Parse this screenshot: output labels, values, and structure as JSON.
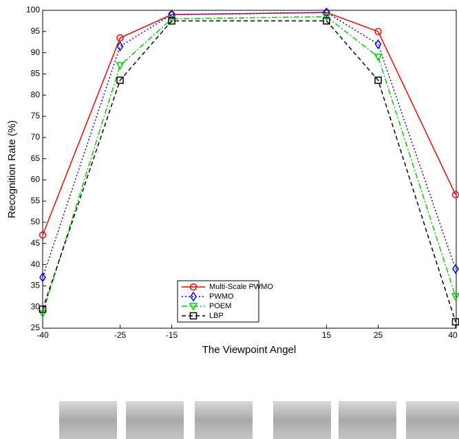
{
  "chart_data": {
    "type": "line",
    "x_label": "The Viewpoint Angel",
    "y_label": "Recognition Rate (%)",
    "x": [
      -40,
      -25,
      -15,
      15,
      25,
      40
    ],
    "xlim": [
      -40,
      40
    ],
    "xticks": [
      -40,
      -25,
      -15,
      15,
      25,
      40
    ],
    "ylim": [
      25,
      100
    ],
    "yticks": [
      25,
      30,
      35,
      40,
      45,
      50,
      55,
      60,
      65,
      70,
      75,
      80,
      85,
      90,
      95,
      100
    ],
    "series": [
      {
        "name": "Multi-Scale PWMO",
        "color": "#ff0000",
        "marker": "circle",
        "dash": "none",
        "values": [
          47,
          93.5,
          99,
          99.5,
          95,
          56.5
        ]
      },
      {
        "name": "PWMO",
        "color": "#0000ff",
        "marker": "diamond",
        "dash": "2 3",
        "values": [
          37,
          91.5,
          99,
          99.5,
          92,
          39
        ]
      },
      {
        "name": "POEM",
        "color": "#00cc00",
        "marker": "triangle-down",
        "dash": "8 3 2 3",
        "values": [
          28.5,
          87,
          98,
          98.5,
          89,
          32.5
        ]
      },
      {
        "name": "LBP",
        "color": "#000000",
        "marker": "square",
        "dash": "6 4",
        "values": [
          29.5,
          83.5,
          97.5,
          97.5,
          83.5,
          26.5
        ]
      }
    ]
  }
}
